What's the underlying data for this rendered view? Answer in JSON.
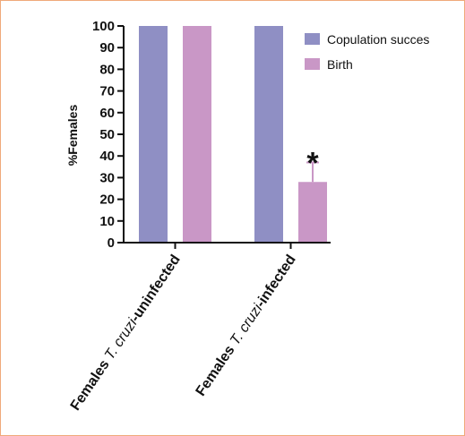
{
  "chart_data": {
    "type": "bar",
    "ylabel": "%Females",
    "ylim": [
      0,
      100
    ],
    "yticks": [
      0,
      10,
      20,
      30,
      40,
      50,
      60,
      70,
      80,
      90,
      100
    ],
    "categories": [
      {
        "prefix": "Females ",
        "italic": "T. cruzi",
        "suffix": "-uninfected"
      },
      {
        "prefix": "Females ",
        "italic": "T. cruzi",
        "suffix": "-infected"
      }
    ],
    "series": [
      {
        "name": "Copulation succes",
        "color": "#8f8fc4",
        "values": [
          100,
          100
        ],
        "errors": [
          0,
          0
        ]
      },
      {
        "name": "Birth",
        "color": "#c997c6",
        "values": [
          100,
          28
        ],
        "errors": [
          0,
          9
        ]
      }
    ],
    "annotations": [
      {
        "text": "*",
        "category": 1,
        "series": 1
      }
    ],
    "legend_position": "top-right",
    "grid": false
  }
}
